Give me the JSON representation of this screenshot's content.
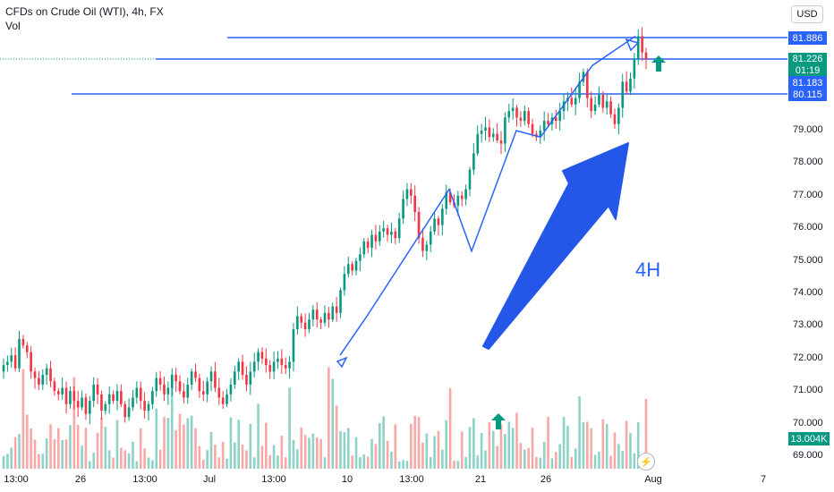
{
  "header": {
    "title": "CFDs on Crude Oil (WTI), 4h, FX",
    "volume_label": "Vol",
    "currency": "USD"
  },
  "annotations": {
    "timeframe_label": "4H",
    "flash_icon": "lightning-icon",
    "arrow_icons": [
      "up-arrow-icon",
      "up-arrow-icon"
    ]
  },
  "price_tags": {
    "level_1": "81.886",
    "level_2": "81.226",
    "countdown": "01:19",
    "level_3": "81.183",
    "level_4": "80.115",
    "volume": "13.004K"
  },
  "colors": {
    "up": "#089981",
    "down": "#f23645",
    "vol_up": "#8fd3c8",
    "vol_down": "#f7a9a7",
    "drawing": "#2962ff"
  },
  "chart_data": {
    "type": "candlestick",
    "y_ticks": [
      "79.000",
      "78.000",
      "77.000",
      "76.000",
      "75.000",
      "74.000",
      "73.000",
      "72.000",
      "71.000",
      "70.000",
      "69.000"
    ],
    "x_ticks": [
      "13:00",
      "26",
      "13:00",
      "Jul",
      "13:00",
      "10",
      "13:00",
      "21",
      "26",
      "Aug",
      "7"
    ],
    "ylim": [
      68.8,
      82.6
    ],
    "horizontal_levels": [
      81.886,
      81.226,
      80.115
    ],
    "close_path": [
      71.8,
      71.9,
      72.1,
      71.7,
      72.6,
      72.4,
      72.2,
      71.6,
      71.4,
      71.2,
      71.5,
      71.7,
      71.3,
      71.0,
      70.9,
      71.1,
      70.6,
      71.0,
      70.7,
      70.5,
      70.8,
      70.3,
      70.7,
      71.2,
      70.9,
      70.4,
      70.6,
      70.9,
      70.7,
      71.0,
      70.6,
      70.2,
      70.5,
      70.8,
      71.1,
      70.7,
      70.4,
      70.6,
      71.0,
      71.4,
      71.2,
      70.9,
      71.1,
      71.5,
      71.3,
      71.0,
      70.8,
      71.2,
      71.6,
      71.4,
      71.0,
      70.9,
      71.3,
      71.6,
      71.1,
      70.8,
      70.6,
      70.9,
      71.2,
      71.6,
      71.9,
      71.5,
      71.2,
      71.6,
      71.9,
      72.2,
      72.0,
      71.8,
      71.6,
      71.9,
      72.0,
      71.8,
      71.7,
      71.9,
      72.9,
      73.3,
      73.1,
      72.9,
      73.2,
      73.5,
      73.2,
      73.1,
      73.4,
      73.2,
      73.6,
      73.4,
      74.1,
      74.6,
      74.9,
      74.7,
      75.0,
      75.2,
      75.6,
      75.4,
      75.8,
      75.6,
      75.9,
      76.0,
      75.8,
      75.9,
      75.7,
      76.3,
      76.9,
      77.2,
      77.0,
      76.5,
      75.7,
      75.3,
      75.5,
      75.9,
      76.3,
      76.1,
      76.6,
      77.1,
      76.8,
      76.7,
      77.0,
      76.9,
      77.2,
      77.8,
      78.3,
      78.9,
      79.0,
      79.1,
      78.8,
      78.9,
      78.7,
      78.6,
      79.4,
      79.6,
      79.7,
      79.4,
      79.3,
      79.6,
      79.2,
      78.9,
      78.8,
      79.0,
      79.3,
      79.2,
      79.4,
      79.3,
      79.6,
      79.9,
      80.0,
      79.8,
      80.0,
      80.5,
      80.8,
      80.0,
      79.6,
      79.8,
      80.1,
      79.7,
      79.9,
      79.5,
      79.2,
      79.7,
      80.5,
      80.2,
      80.6,
      81.2,
      81.9,
      81.4,
      81.2
    ],
    "zigzag_path": [
      72.1,
      73.3,
      77.2,
      75.3,
      79.0,
      78.8,
      81.0,
      81.9
    ],
    "volume_scale_ref": "13.004K"
  }
}
